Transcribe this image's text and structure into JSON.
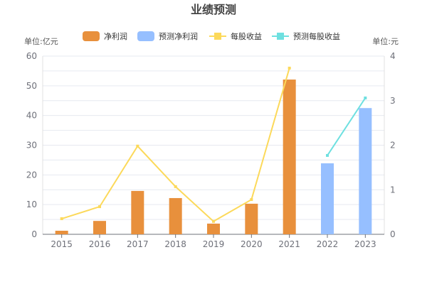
{
  "chart_data": {
    "type": "bar",
    "title": "业绩预测",
    "left_unit": "单位:亿元",
    "right_unit": "单位:元",
    "categories": [
      "2015",
      "2016",
      "2017",
      "2018",
      "2019",
      "2020",
      "2021",
      "2022",
      "2023"
    ],
    "left_axis": {
      "min": 0,
      "max": 60,
      "ticks": [
        0,
        10,
        20,
        30,
        40,
        50,
        60
      ]
    },
    "right_axis": {
      "min": 0,
      "max": 4,
      "ticks": [
        0,
        1,
        2,
        3,
        4
      ]
    },
    "grid": true,
    "legend_position": "top-center",
    "series": [
      {
        "name": "净利润",
        "type": "bar",
        "axis": "left",
        "color": "#e8903c",
        "values": [
          1.2,
          4.5,
          14.6,
          12.2,
          3.6,
          10.3,
          52.1,
          null,
          null
        ]
      },
      {
        "name": "预测净利润",
        "type": "bar",
        "axis": "left",
        "color": "#96bfff",
        "values": [
          null,
          null,
          null,
          null,
          null,
          null,
          null,
          23.9,
          42.5
        ]
      },
      {
        "name": "每股收益",
        "type": "line",
        "axis": "right",
        "color": "#fcd95a",
        "values": [
          0.35,
          0.62,
          1.98,
          1.07,
          0.29,
          0.78,
          3.73,
          null,
          null
        ]
      },
      {
        "name": "预测每股收益",
        "type": "line",
        "axis": "right",
        "color": "#6ee0e0",
        "values": [
          null,
          null,
          null,
          null,
          null,
          null,
          null,
          1.77,
          3.06
        ]
      }
    ]
  }
}
